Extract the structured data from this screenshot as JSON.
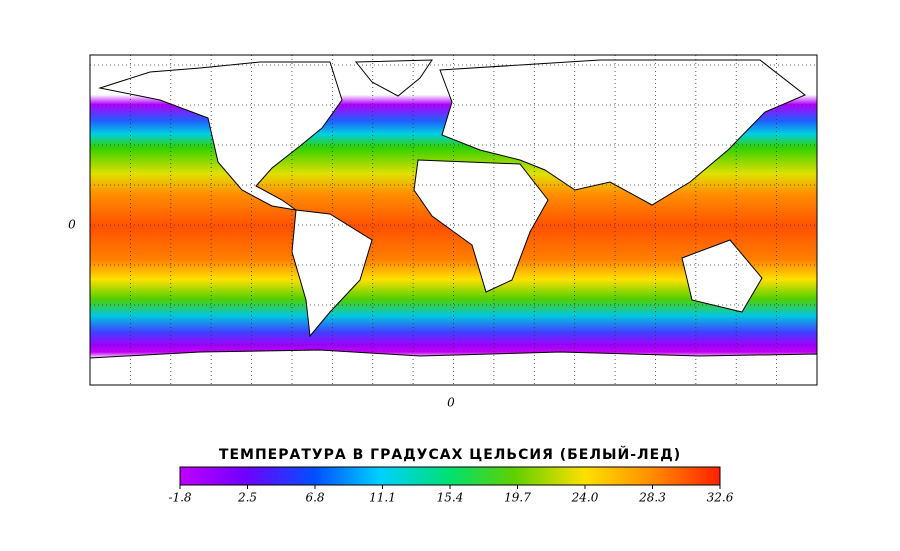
{
  "map": {
    "lat_label": "0",
    "lon_label": "0"
  },
  "colorbar": {
    "title": "ТЕМПЕРАТУРА В ГРАДУСАХ ЦЕЛЬСИЯ (БЕЛЫЙ-ЛЕД)",
    "range": [
      -1.8,
      32.6
    ],
    "ticks": [
      -1.8,
      2.5,
      6.8,
      11.1,
      15.4,
      19.7,
      {
        "value": 24,
        "label": "24.0"
      },
      28.3,
      32.6
    ]
  }
}
